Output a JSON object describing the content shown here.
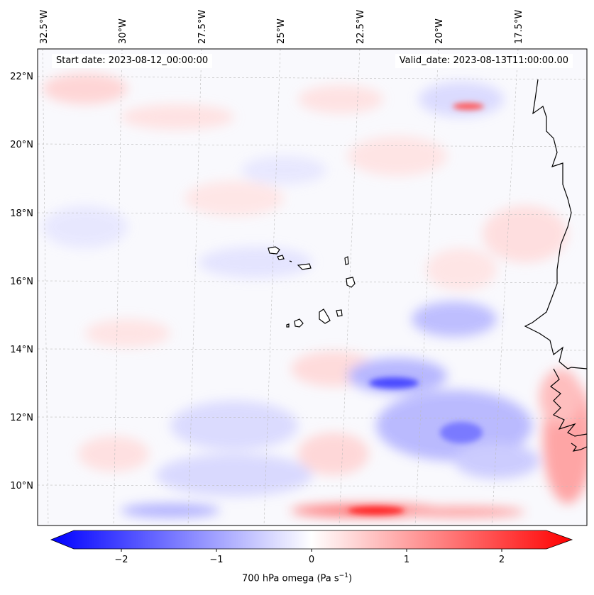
{
  "header": {
    "start_date": "Start date: 2023-08-12_00:00:00",
    "valid_date": "Valid_date: 2023-08-13T11:00:00.00"
  },
  "longitude_labels": [
    "32.5°W",
    "30°W",
    "27.5°W",
    "25°W",
    "22.5°W",
    "20°W",
    "17.5°W"
  ],
  "latitude_labels": [
    "22°N",
    "20°N",
    "18°N",
    "16°N",
    "14°N",
    "12°N",
    "10°N"
  ],
  "colorbar": {
    "title": "700 hPa omega (Pa s",
    "title_exponent": "−1",
    "title_close": ")",
    "ticks": [
      "−2",
      "−1",
      "0",
      "1",
      "2"
    ],
    "range": [
      -2.6,
      2.6
    ],
    "colormap": "bwr",
    "extend": "both"
  },
  "map": {
    "projection": "lambert-conformal",
    "gridlines": true,
    "field": "700 hPa omega",
    "lon_range_deg": [
      -32.5,
      -15.5
    ],
    "lat_range_deg": [
      8.8,
      22.8
    ]
  },
  "colors": {
    "min": "#0000ff",
    "mid": "#ffffff",
    "max": "#ff0000",
    "coastline": "#000000",
    "gridline": "#bbbbbb"
  }
}
